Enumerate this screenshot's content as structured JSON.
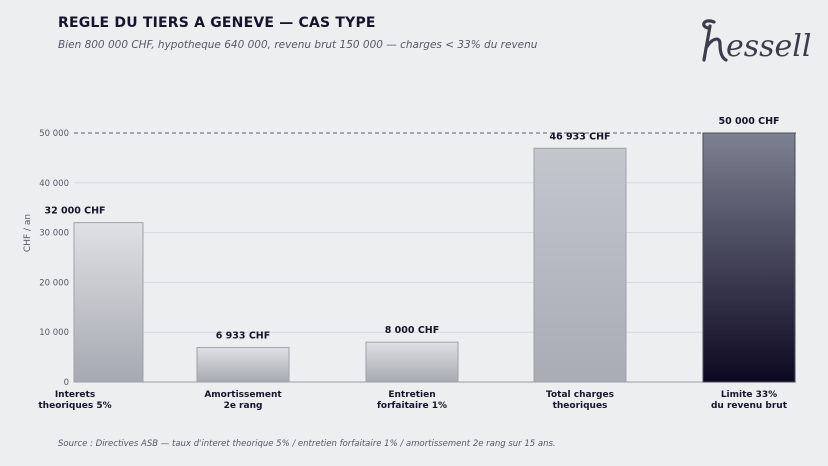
{
  "header": {
    "title": "REGLE DU TIERS A GENEVE — CAS TYPE",
    "subtitle": "Bien 800 000 CHF, hypotheque 640 000, revenu brut 150 000 — charges < 33% du revenu"
  },
  "logo": {
    "text": "nessell"
  },
  "footer": {
    "source": "Source : Directives ASB — taux d'interet theorique 5% / entretien forfaitaire 1% / amortissement 2e rang sur 15 ans."
  },
  "chart_data": {
    "type": "bar",
    "ylabel": "CHF / an",
    "ylim": [
      0,
      50000
    ],
    "yticks": [
      0,
      10000,
      20000,
      30000,
      40000,
      50000
    ],
    "ytick_labels": [
      "0",
      "10 000",
      "20 000",
      "30 000",
      "40 000",
      "50 000"
    ],
    "grid": true,
    "reference_line": {
      "value": 50000,
      "style": "dashed"
    },
    "categories": [
      [
        "Interets",
        "theoriques 5%"
      ],
      [
        "Amortissement",
        "2e rang"
      ],
      [
        "Entretien",
        "forfaitaire 1%"
      ],
      [
        "Total charges",
        "theoriques"
      ],
      [
        "Limite 33%",
        "du revenu brut"
      ]
    ],
    "values": [
      32000,
      6933,
      8000,
      46933,
      50000
    ],
    "data_labels": [
      "32 000 CHF",
      "6 933 CHF",
      "8 000 CHF",
      "46 933 CHF",
      "50 000 CHF"
    ],
    "colors": {
      "bar_light_top": "#dfe0e4",
      "bar_light_bottom": "#a6a9b1",
      "bar_mid_top": "#c3c6cd",
      "bar_mid_bottom": "#a9acb5",
      "limit_top": "#7d8191",
      "limit_bottom": "#0d0821",
      "grid": "#d9dade",
      "refline": "#5a5d6c"
    }
  }
}
